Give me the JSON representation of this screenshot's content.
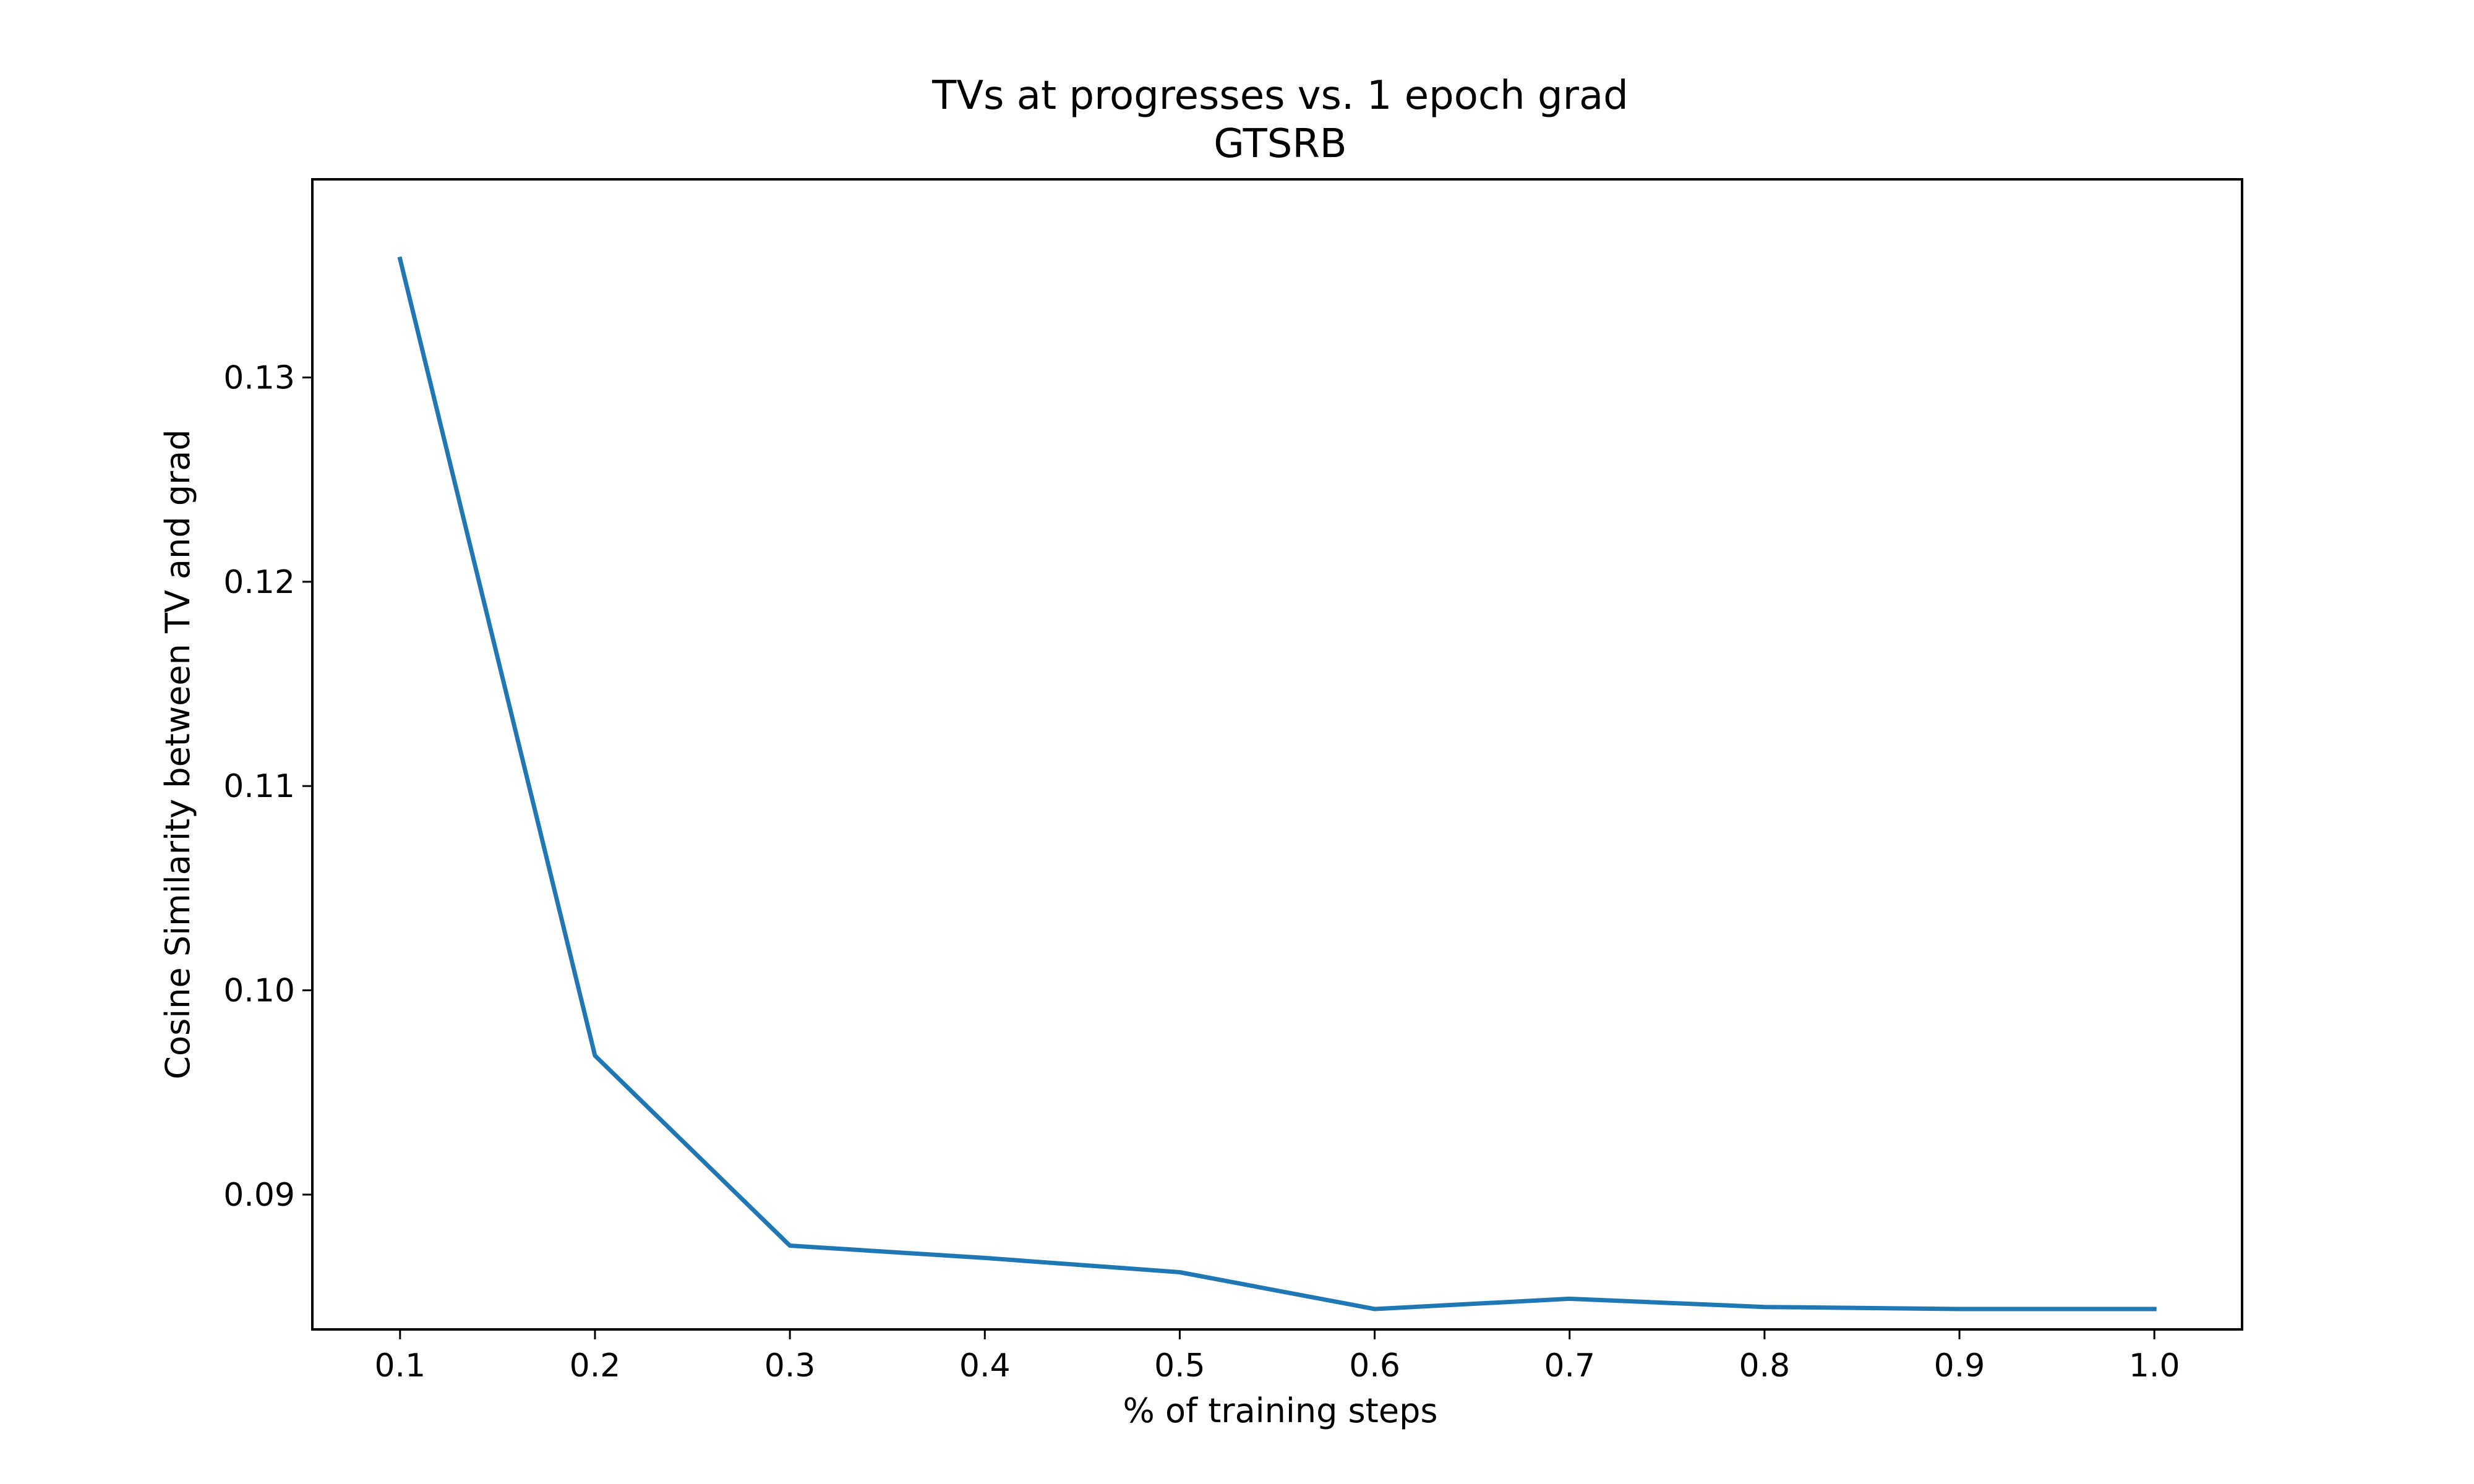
{
  "chart_data": {
    "type": "line",
    "title": "TVs at progresses vs. 1 epoch grad",
    "subtitle": "GTSRB",
    "xlabel": "% of training steps",
    "ylabel": "Cosine Similarity between TV and grad",
    "xlim": [
      0.055,
      1.045
    ],
    "ylim": [
      0.0834,
      0.1397
    ],
    "x_ticks": [
      0.1,
      0.2,
      0.3,
      0.4,
      0.5,
      0.6,
      0.7,
      0.8,
      0.9,
      1.0
    ],
    "x_tick_labels": [
      "0.1",
      "0.2",
      "0.3",
      "0.4",
      "0.5",
      "0.6",
      "0.7",
      "0.8",
      "0.9",
      "1.0"
    ],
    "y_ticks": [
      0.09,
      0.1,
      0.11,
      0.12,
      0.13
    ],
    "y_tick_labels": [
      "0.09",
      "0.10",
      "0.11",
      "0.12",
      "0.13"
    ],
    "grid": false,
    "series": [
      {
        "color": "#1f77b4",
        "x": [
          0.1,
          0.2,
          0.3,
          0.4,
          0.5,
          0.6,
          0.7,
          0.8,
          0.9,
          1.0
        ],
        "y": [
          0.1358,
          0.0968,
          0.0875,
          0.0869,
          0.0862,
          0.0844,
          0.0849,
          0.0845,
          0.0844,
          0.0844
        ]
      }
    ]
  }
}
